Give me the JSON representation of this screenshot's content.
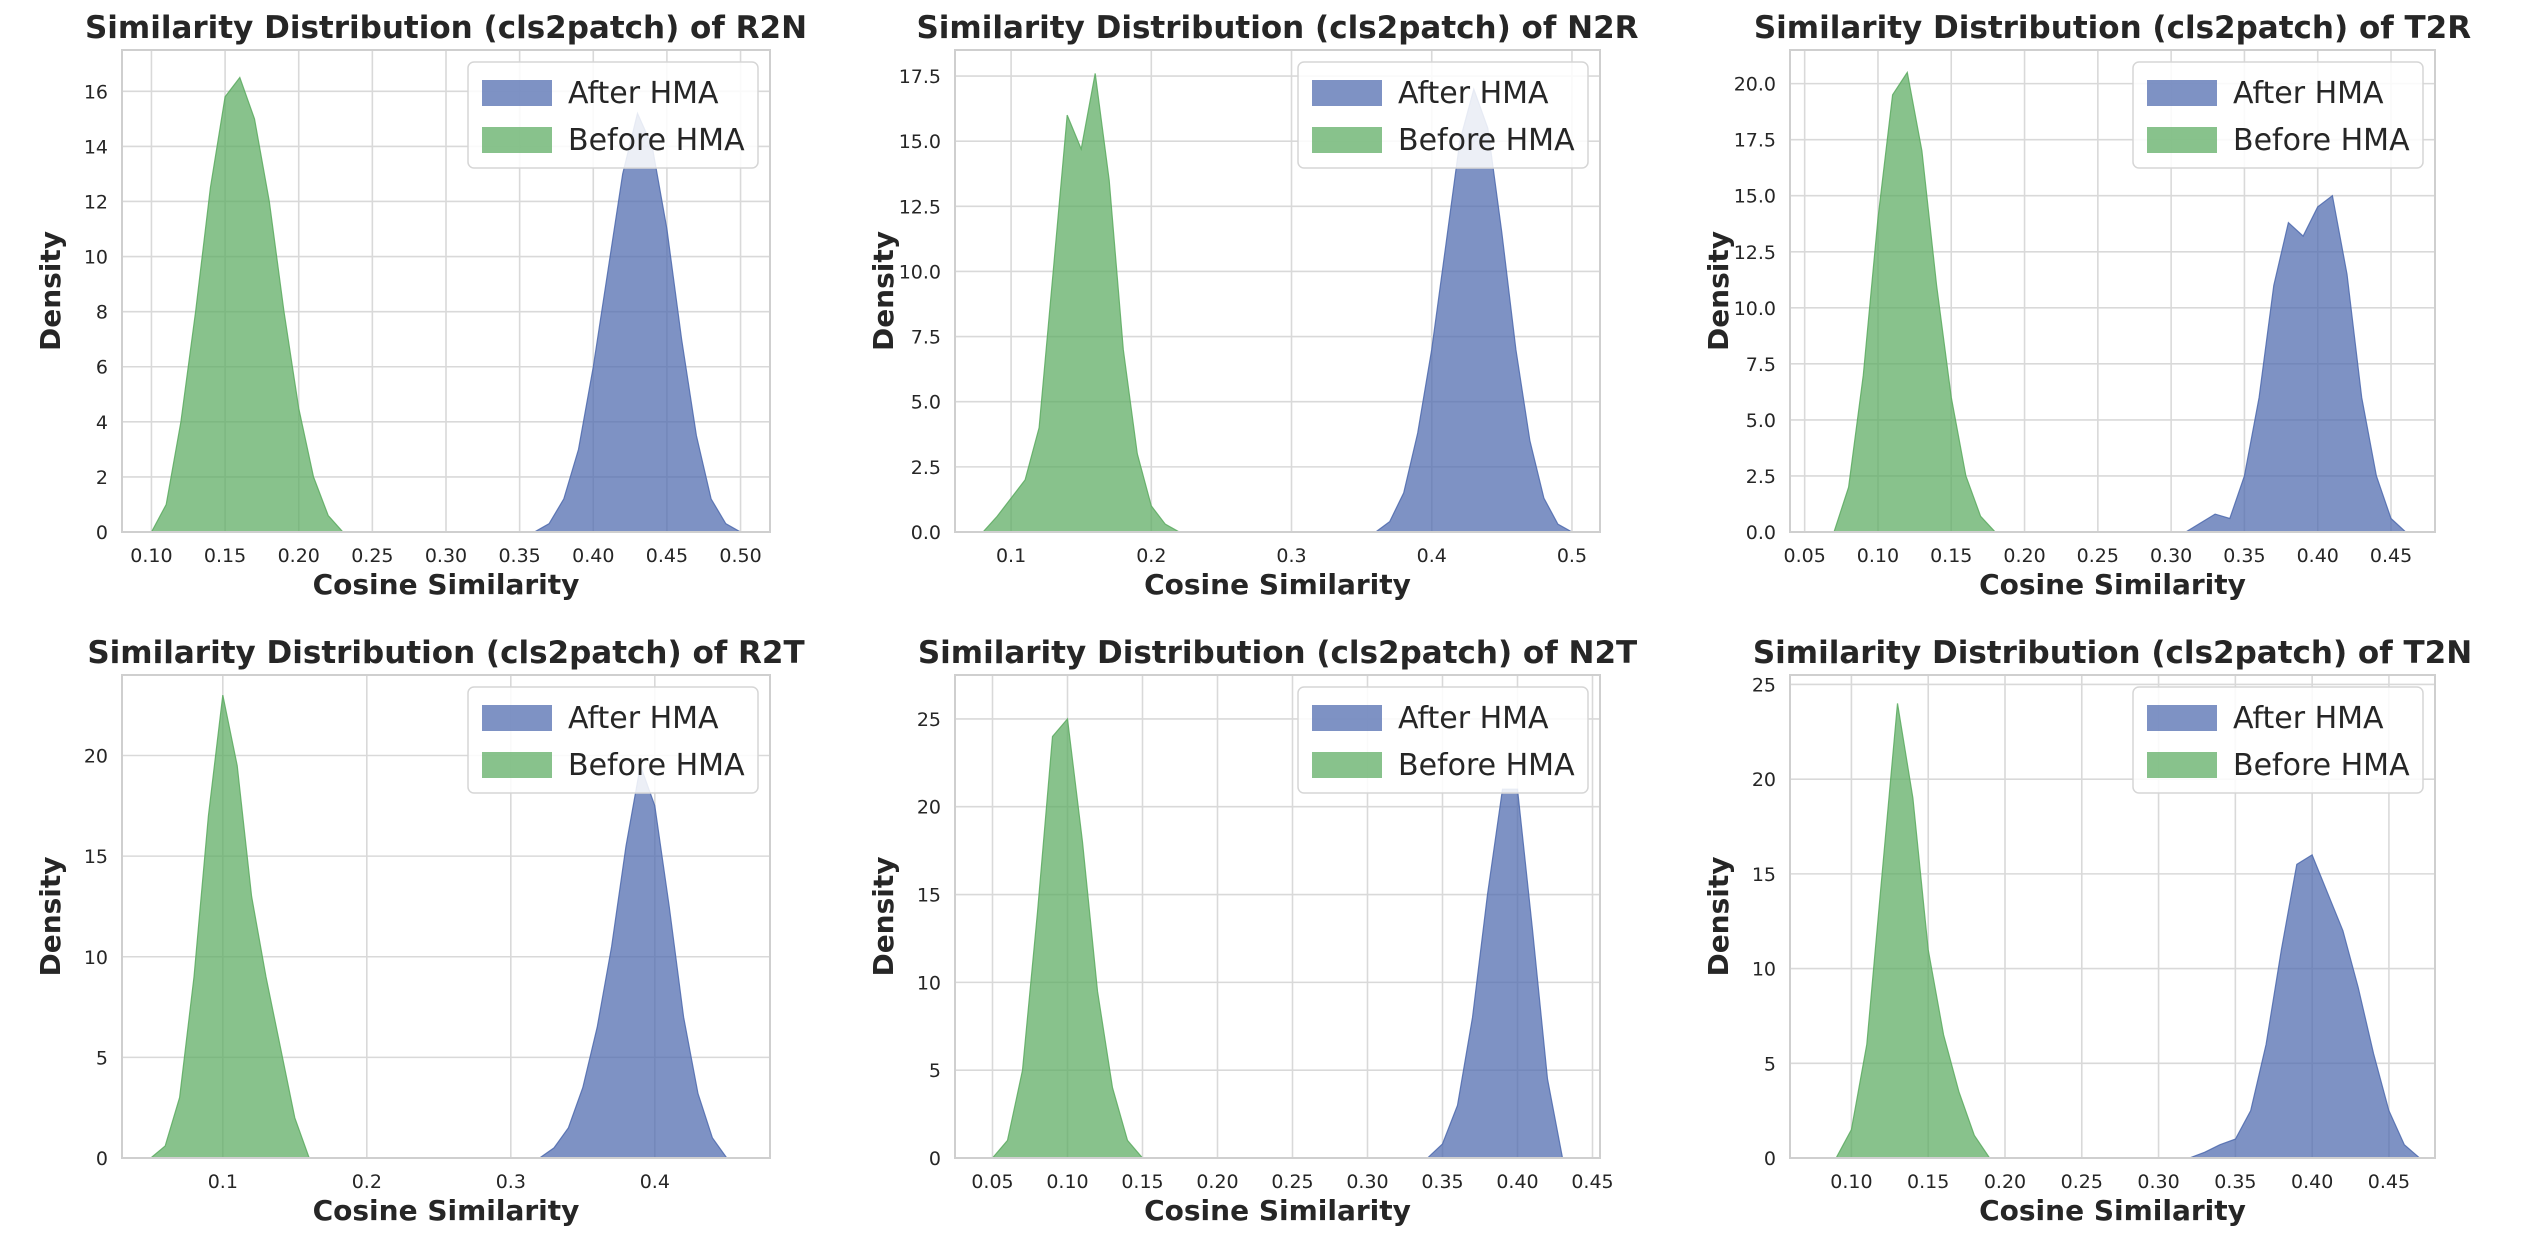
{
  "colors": {
    "after": "#4c68ad",
    "before": "#5aaa5f",
    "grid": "#d9d9d9",
    "axis_frame": "#cfcfcf",
    "text": "#262626"
  },
  "chart_data": [
    {
      "type": "area",
      "title": "Similarity Distribution (cls2patch) of R2N",
      "xlabel": "Cosine Similarity",
      "ylabel": "Density",
      "xlim": [
        0.08,
        0.52
      ],
      "ylim": [
        0,
        17.5
      ],
      "xticks": [
        0.1,
        0.15,
        0.2,
        0.25,
        0.3,
        0.35,
        0.4,
        0.45,
        0.5
      ],
      "xtick_labels": [
        "0.10",
        "0.15",
        "0.20",
        "0.25",
        "0.30",
        "0.35",
        "0.40",
        "0.45",
        "0.50"
      ],
      "yticks": [
        0,
        2,
        4,
        6,
        8,
        10,
        12,
        14,
        16
      ],
      "ytick_labels": [
        "0",
        "2",
        "4",
        "6",
        "8",
        "10",
        "12",
        "14",
        "16"
      ],
      "legend": {
        "position": "top-right",
        "entries": [
          "After HMA",
          "Before HMA"
        ]
      },
      "series": [
        {
          "name": "After HMA",
          "x": [
            0.36,
            0.37,
            0.38,
            0.39,
            0.4,
            0.41,
            0.42,
            0.43,
            0.44,
            0.45,
            0.46,
            0.47,
            0.48,
            0.49,
            0.5
          ],
          "y": [
            0,
            0.3,
            1.2,
            3.0,
            6.0,
            9.5,
            13.0,
            15.2,
            14.0,
            11.0,
            7.0,
            3.5,
            1.2,
            0.3,
            0
          ]
        },
        {
          "name": "Before HMA",
          "x": [
            0.1,
            0.11,
            0.12,
            0.13,
            0.14,
            0.15,
            0.16,
            0.17,
            0.18,
            0.19,
            0.2,
            0.21,
            0.22,
            0.23
          ],
          "y": [
            0,
            1.0,
            4.0,
            8.0,
            12.5,
            15.8,
            16.5,
            15.0,
            12.0,
            8.0,
            4.5,
            2.0,
            0.6,
            0
          ]
        }
      ]
    },
    {
      "type": "area",
      "title": "Similarity Distribution (cls2patch) of N2R",
      "xlabel": "Cosine Similarity",
      "ylabel": "Density",
      "xlim": [
        0.06,
        0.52
      ],
      "ylim": [
        0,
        18.5
      ],
      "xticks": [
        0.1,
        0.2,
        0.3,
        0.4,
        0.5
      ],
      "xtick_labels": [
        "0.1",
        "0.2",
        "0.3",
        "0.4",
        "0.5"
      ],
      "yticks": [
        0,
        2.5,
        5,
        7.5,
        10,
        12.5,
        15,
        17.5
      ],
      "ytick_labels": [
        "0.0",
        "2.5",
        "5.0",
        "7.5",
        "10.0",
        "12.5",
        "15.0",
        "17.5"
      ],
      "legend": {
        "position": "top-right",
        "entries": [
          "After HMA",
          "Before HMA"
        ]
      },
      "series": [
        {
          "name": "After HMA",
          "x": [
            0.36,
            0.37,
            0.38,
            0.39,
            0.4,
            0.41,
            0.42,
            0.43,
            0.44,
            0.45,
            0.46,
            0.47,
            0.48,
            0.49,
            0.5
          ],
          "y": [
            0,
            0.4,
            1.5,
            3.8,
            7.0,
            11.0,
            15.0,
            17.0,
            15.5,
            11.5,
            7.0,
            3.5,
            1.3,
            0.3,
            0
          ]
        },
        {
          "name": "Before HMA",
          "x": [
            0.08,
            0.09,
            0.1,
            0.11,
            0.12,
            0.13,
            0.14,
            0.15,
            0.16,
            0.17,
            0.18,
            0.19,
            0.2,
            0.21,
            0.22
          ],
          "y": [
            0,
            0.6,
            1.3,
            2.0,
            4.0,
            10.0,
            16.0,
            14.7,
            17.6,
            13.5,
            7.0,
            3.0,
            1.0,
            0.3,
            0
          ]
        }
      ]
    },
    {
      "type": "area",
      "title": "Similarity Distribution (cls2patch) of T2R",
      "xlabel": "Cosine Similarity",
      "ylabel": "Density",
      "xlim": [
        0.04,
        0.48
      ],
      "ylim": [
        0,
        21.5
      ],
      "xticks": [
        0.05,
        0.1,
        0.15,
        0.2,
        0.25,
        0.3,
        0.35,
        0.4,
        0.45
      ],
      "xtick_labels": [
        "0.05",
        "0.10",
        "0.15",
        "0.20",
        "0.25",
        "0.30",
        "0.35",
        "0.40",
        "0.45"
      ],
      "yticks": [
        0,
        2.5,
        5,
        7.5,
        10,
        12.5,
        15,
        17.5,
        20
      ],
      "ytick_labels": [
        "0.0",
        "2.5",
        "5.0",
        "7.5",
        "10.0",
        "12.5",
        "15.0",
        "17.5",
        "20.0"
      ],
      "legend": {
        "position": "top-right",
        "entries": [
          "After HMA",
          "Before HMA"
        ]
      },
      "series": [
        {
          "name": "After HMA",
          "x": [
            0.31,
            0.32,
            0.33,
            0.34,
            0.35,
            0.36,
            0.37,
            0.38,
            0.39,
            0.4,
            0.41,
            0.42,
            0.43,
            0.44,
            0.45,
            0.46
          ],
          "y": [
            0,
            0.4,
            0.8,
            0.6,
            2.5,
            6.0,
            11.0,
            13.8,
            13.2,
            14.5,
            15.0,
            11.5,
            6.0,
            2.5,
            0.6,
            0
          ]
        },
        {
          "name": "Before HMA",
          "x": [
            0.07,
            0.08,
            0.09,
            0.1,
            0.11,
            0.12,
            0.13,
            0.14,
            0.15,
            0.16,
            0.17,
            0.18
          ],
          "y": [
            0,
            2.0,
            7.0,
            14.0,
            19.5,
            20.5,
            17.0,
            11.0,
            6.0,
            2.5,
            0.7,
            0
          ]
        }
      ]
    },
    {
      "type": "area",
      "title": "Similarity Distribution (cls2patch) of R2T",
      "xlabel": "Cosine Similarity",
      "ylabel": "Density",
      "xlim": [
        0.03,
        0.48
      ],
      "ylim": [
        0,
        24
      ],
      "xticks": [
        0.1,
        0.2,
        0.3,
        0.4
      ],
      "xtick_labels": [
        "0.1",
        "0.2",
        "0.3",
        "0.4"
      ],
      "yticks": [
        0,
        5,
        10,
        15,
        20
      ],
      "ytick_labels": [
        "0",
        "5",
        "10",
        "15",
        "20"
      ],
      "legend": {
        "position": "top-right",
        "entries": [
          "After HMA",
          "Before HMA"
        ]
      },
      "series": [
        {
          "name": "After HMA",
          "x": [
            0.32,
            0.33,
            0.34,
            0.35,
            0.36,
            0.37,
            0.38,
            0.39,
            0.4,
            0.41,
            0.42,
            0.43,
            0.44,
            0.45
          ],
          "y": [
            0,
            0.5,
            1.5,
            3.5,
            6.5,
            10.5,
            15.5,
            19.5,
            17.5,
            12.5,
            7.0,
            3.2,
            1.0,
            0
          ]
        },
        {
          "name": "Before HMA",
          "x": [
            0.05,
            0.06,
            0.07,
            0.08,
            0.09,
            0.1,
            0.11,
            0.12,
            0.13,
            0.14,
            0.15,
            0.16
          ],
          "y": [
            0,
            0.6,
            3.0,
            9.0,
            17.0,
            23.0,
            19.5,
            13.0,
            9.0,
            5.5,
            2.0,
            0
          ]
        }
      ]
    },
    {
      "type": "area",
      "title": "Similarity Distribution (cls2patch) of N2T",
      "xlabel": "Cosine Similarity",
      "ylabel": "Density",
      "xlim": [
        0.025,
        0.455
      ],
      "ylim": [
        0,
        27.5
      ],
      "xticks": [
        0.05,
        0.1,
        0.15,
        0.2,
        0.25,
        0.3,
        0.35,
        0.4,
        0.45
      ],
      "xtick_labels": [
        "0.05",
        "0.10",
        "0.15",
        "0.20",
        "0.25",
        "0.30",
        "0.35",
        "0.40",
        "0.45"
      ],
      "yticks": [
        0,
        5,
        10,
        15,
        20,
        25
      ],
      "ytick_labels": [
        "0",
        "5",
        "10",
        "15",
        "20",
        "25"
      ],
      "legend": {
        "position": "top-right",
        "entries": [
          "After HMA",
          "Before HMA"
        ]
      },
      "series": [
        {
          "name": "After HMA",
          "x": [
            0.34,
            0.35,
            0.36,
            0.37,
            0.38,
            0.39,
            0.4,
            0.41,
            0.42,
            0.43
          ],
          "y": [
            0,
            0.8,
            3.0,
            8.0,
            15.0,
            21.0,
            21.0,
            13.0,
            4.5,
            0
          ]
        },
        {
          "name": "Before HMA",
          "x": [
            0.05,
            0.06,
            0.07,
            0.08,
            0.09,
            0.1,
            0.11,
            0.12,
            0.13,
            0.14,
            0.15
          ],
          "y": [
            0,
            1.0,
            5.0,
            14.0,
            24.0,
            25.0,
            18.0,
            9.5,
            4.0,
            1.0,
            0
          ]
        }
      ]
    },
    {
      "type": "area",
      "title": "Similarity Distribution (cls2patch) of T2N",
      "xlabel": "Cosine Similarity",
      "ylabel": "Density",
      "xlim": [
        0.06,
        0.48
      ],
      "ylim": [
        0,
        25.5
      ],
      "xticks": [
        0.1,
        0.15,
        0.2,
        0.25,
        0.3,
        0.35,
        0.4,
        0.45
      ],
      "xtick_labels": [
        "0.10",
        "0.15",
        "0.20",
        "0.25",
        "0.30",
        "0.35",
        "0.40",
        "0.45"
      ],
      "yticks": [
        0,
        5,
        10,
        15,
        20,
        25
      ],
      "ytick_labels": [
        "0",
        "5",
        "10",
        "15",
        "20",
        "25"
      ],
      "legend": {
        "position": "top-right",
        "entries": [
          "After HMA",
          "Before HMA"
        ]
      },
      "series": [
        {
          "name": "After HMA",
          "x": [
            0.32,
            0.33,
            0.34,
            0.35,
            0.36,
            0.37,
            0.38,
            0.39,
            0.4,
            0.41,
            0.42,
            0.43,
            0.44,
            0.45,
            0.46,
            0.47
          ],
          "y": [
            0,
            0.3,
            0.7,
            1.0,
            2.5,
            6.0,
            11.0,
            15.5,
            16.0,
            14.0,
            12.0,
            9.0,
            5.5,
            2.5,
            0.7,
            0
          ]
        },
        {
          "name": "Before HMA",
          "x": [
            0.09,
            0.1,
            0.11,
            0.12,
            0.13,
            0.14,
            0.15,
            0.16,
            0.17,
            0.18,
            0.19
          ],
          "y": [
            0,
            1.5,
            6.0,
            15.0,
            24.0,
            19.0,
            11.0,
            6.5,
            3.5,
            1.2,
            0
          ]
        }
      ]
    }
  ]
}
